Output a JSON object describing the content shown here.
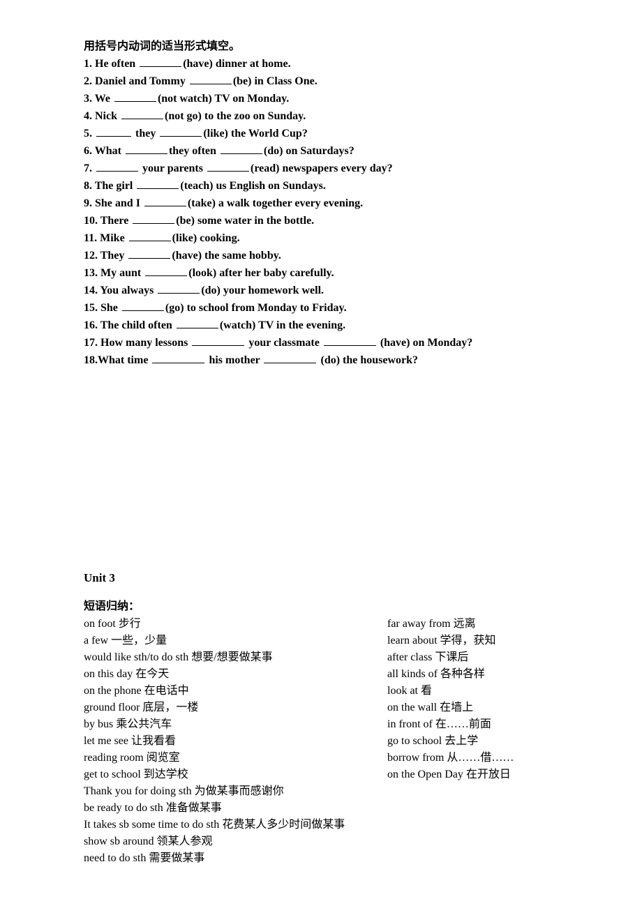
{
  "instruction": "用括号内动词的适当形式填空。",
  "exercises": {
    "e1_a": "1. He often ",
    "e1_b": "(have) dinner at home.",
    "e2_a": "2. Daniel and Tommy ",
    "e2_b": "(be) in Class One.",
    "e3_a": "3. We ",
    "e3_b": "(not watch) TV on Monday.",
    "e4_a": "4. Nick ",
    "e4_b": "(not go) to the zoo on Sunday.",
    "e5_a": "5. ",
    "e5_b": " they ",
    "e5_c": "(like) the World Cup?",
    "e6_a": "6. What ",
    "e6_b": "they often ",
    "e6_c": "(do) on Saturdays?",
    "e7_a": "7. ",
    "e7_b": " your parents ",
    "e7_c": "(read) newspapers every day?",
    "e8_a": "8. The girl ",
    "e8_b": "(teach) us English on Sundays.",
    "e9_a": "9. She and I ",
    "e9_b": "(take) a walk together every evening.",
    "e10_a": "10. There ",
    "e10_b": "(be) some water in the bottle.",
    "e11_a": "11. Mike ",
    "e11_b": "(like) cooking.",
    "e12_a": "12. They ",
    "e12_b": "(have) the same hobby.",
    "e13_a": "13. My aunt ",
    "e13_b": "(look) after her baby carefully.",
    "e14_a": "14. You always ",
    "e14_b": "(do) your homework well.",
    "e15_a": "15. She ",
    "e15_b": "(go) to school from Monday to Friday.",
    "e16_a": "16. The child often ",
    "e16_b": "(watch) TV in the evening.",
    "e17_a": "17. How many lessons ",
    "e17_b": " your classmate ",
    "e17_c": " (have) on Monday?",
    "e18_a": "18.What time ",
    "e18_b": " his mother ",
    "e18_c": " (do) the housework?"
  },
  "unit_title": "Unit 3",
  "section_title": "短语归纳：",
  "phrases_left": {
    "p0": "on foot  步行",
    "p1": "a few  一些，少量",
    "p2": "would like sth/to do sth  想要/想要做某事",
    "p3": "on this day  在今天",
    "p4": "on the phone  在电话中",
    "p5": "ground floor  底层，一楼",
    "p6": "by bus    乘公共汽车",
    "p7": "let me see  让我看看",
    "p8": "reading room  阅览室",
    "p9": "get to school  到达学校"
  },
  "phrases_right": {
    "p0": "far away from  远离",
    "p1": " learn about  学得，获知",
    "p2": " after class  下课后",
    "p3": " all kinds of  各种各样",
    "p4": " look at  看",
    "p5": "  on the wall  在墙上",
    "p6": "  in front of  在……前面",
    "p7": "  go to school  去上学",
    "p8": "  borrow    from    从……借……",
    "p9": "  on the Open Day  在开放日"
  },
  "phrases_full": {
    "p0": "Thank you for doing sth  为做某事而感谢你",
    "p1": "be ready to do sth  准备做某事",
    "p2": "It takes sb some time to do sth  花费某人多少时间做某事",
    "p3": "show sb around  领某人参观",
    "p4": "need to do sth  需要做某事"
  }
}
